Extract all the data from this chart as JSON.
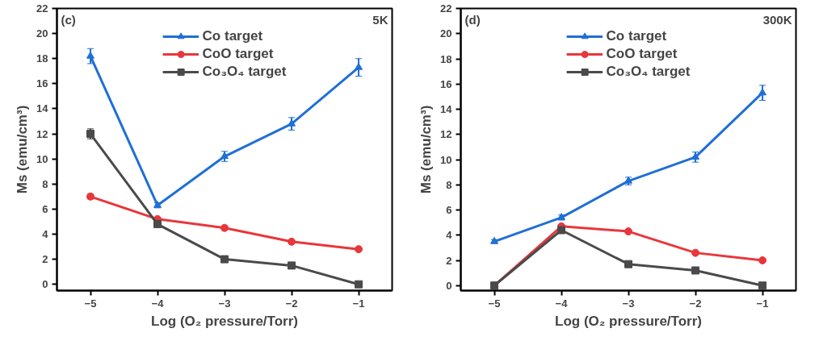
{
  "chart_data": [
    {
      "type": "line",
      "xlabel": "Log (O₂ pressure/Torr)",
      "ylabel": "Ms (emu/cm³)",
      "annotations": [
        "(c)",
        "5K"
      ],
      "x": [
        -5,
        -4,
        -3,
        -2,
        -1
      ],
      "xlim": [
        -5.5,
        -0.5
      ],
      "xticks": [
        -5,
        -4,
        -3,
        -2,
        -1
      ],
      "ylim": [
        -0.5,
        22
      ],
      "yticks": [
        0,
        2,
        4,
        6,
        8,
        10,
        12,
        14,
        16,
        18,
        20,
        22
      ],
      "grid": false,
      "legend": "top",
      "series": [
        {
          "name": "Co target",
          "color": "#1f6fd6",
          "marker": "triangle",
          "values": [
            18.2,
            6.3,
            10.2,
            12.8,
            17.3
          ],
          "errors": [
            0.6,
            0.2,
            0.4,
            0.5,
            0.7
          ]
        },
        {
          "name": "CoO target",
          "color": "#e8373b",
          "marker": "circle",
          "values": [
            7.0,
            5.2,
            4.5,
            3.4,
            2.8
          ],
          "errors": [
            0.2,
            0.15,
            0.1,
            0.1,
            0.1
          ]
        },
        {
          "name": "Co₃O₄ target",
          "color": "#4a4a4a",
          "marker": "square",
          "values": [
            12.0,
            4.8,
            2.0,
            1.5,
            0.0
          ],
          "errors": [
            0.4,
            0.15,
            0.1,
            0.1,
            0.1
          ]
        }
      ]
    },
    {
      "type": "line",
      "xlabel": "Log (O₂ pressure/Torr)",
      "ylabel": "Ms (emu/cm³)",
      "annotations": [
        "(d)",
        "300K"
      ],
      "x": [
        -5,
        -4,
        -3,
        -2,
        -1
      ],
      "xlim": [
        -5.5,
        -0.5
      ],
      "xticks": [
        -5,
        -4,
        -3,
        -2,
        -1
      ],
      "ylim": [
        -0.4,
        22
      ],
      "yticks": [
        0,
        2,
        4,
        6,
        8,
        10,
        12,
        14,
        16,
        18,
        20,
        22
      ],
      "grid": false,
      "legend": "top",
      "series": [
        {
          "name": "Co target",
          "color": "#1f6fd6",
          "marker": "triangle",
          "values": [
            3.5,
            5.4,
            8.3,
            10.2,
            15.3
          ],
          "errors": [
            0.15,
            0.2,
            0.3,
            0.4,
            0.6
          ]
        },
        {
          "name": "CoO target",
          "color": "#e8373b",
          "marker": "circle",
          "values": [
            0.0,
            4.7,
            4.3,
            2.6,
            2.0
          ],
          "errors": [
            null,
            0.15,
            0.1,
            0.1,
            0.1
          ]
        },
        {
          "name": "Co₃O₄ target",
          "color": "#4a4a4a",
          "marker": "square",
          "values": [
            0.0,
            4.4,
            1.7,
            1.2,
            0.0
          ],
          "errors": [
            null,
            0.15,
            0.1,
            0.1,
            0.1
          ]
        }
      ]
    }
  ]
}
